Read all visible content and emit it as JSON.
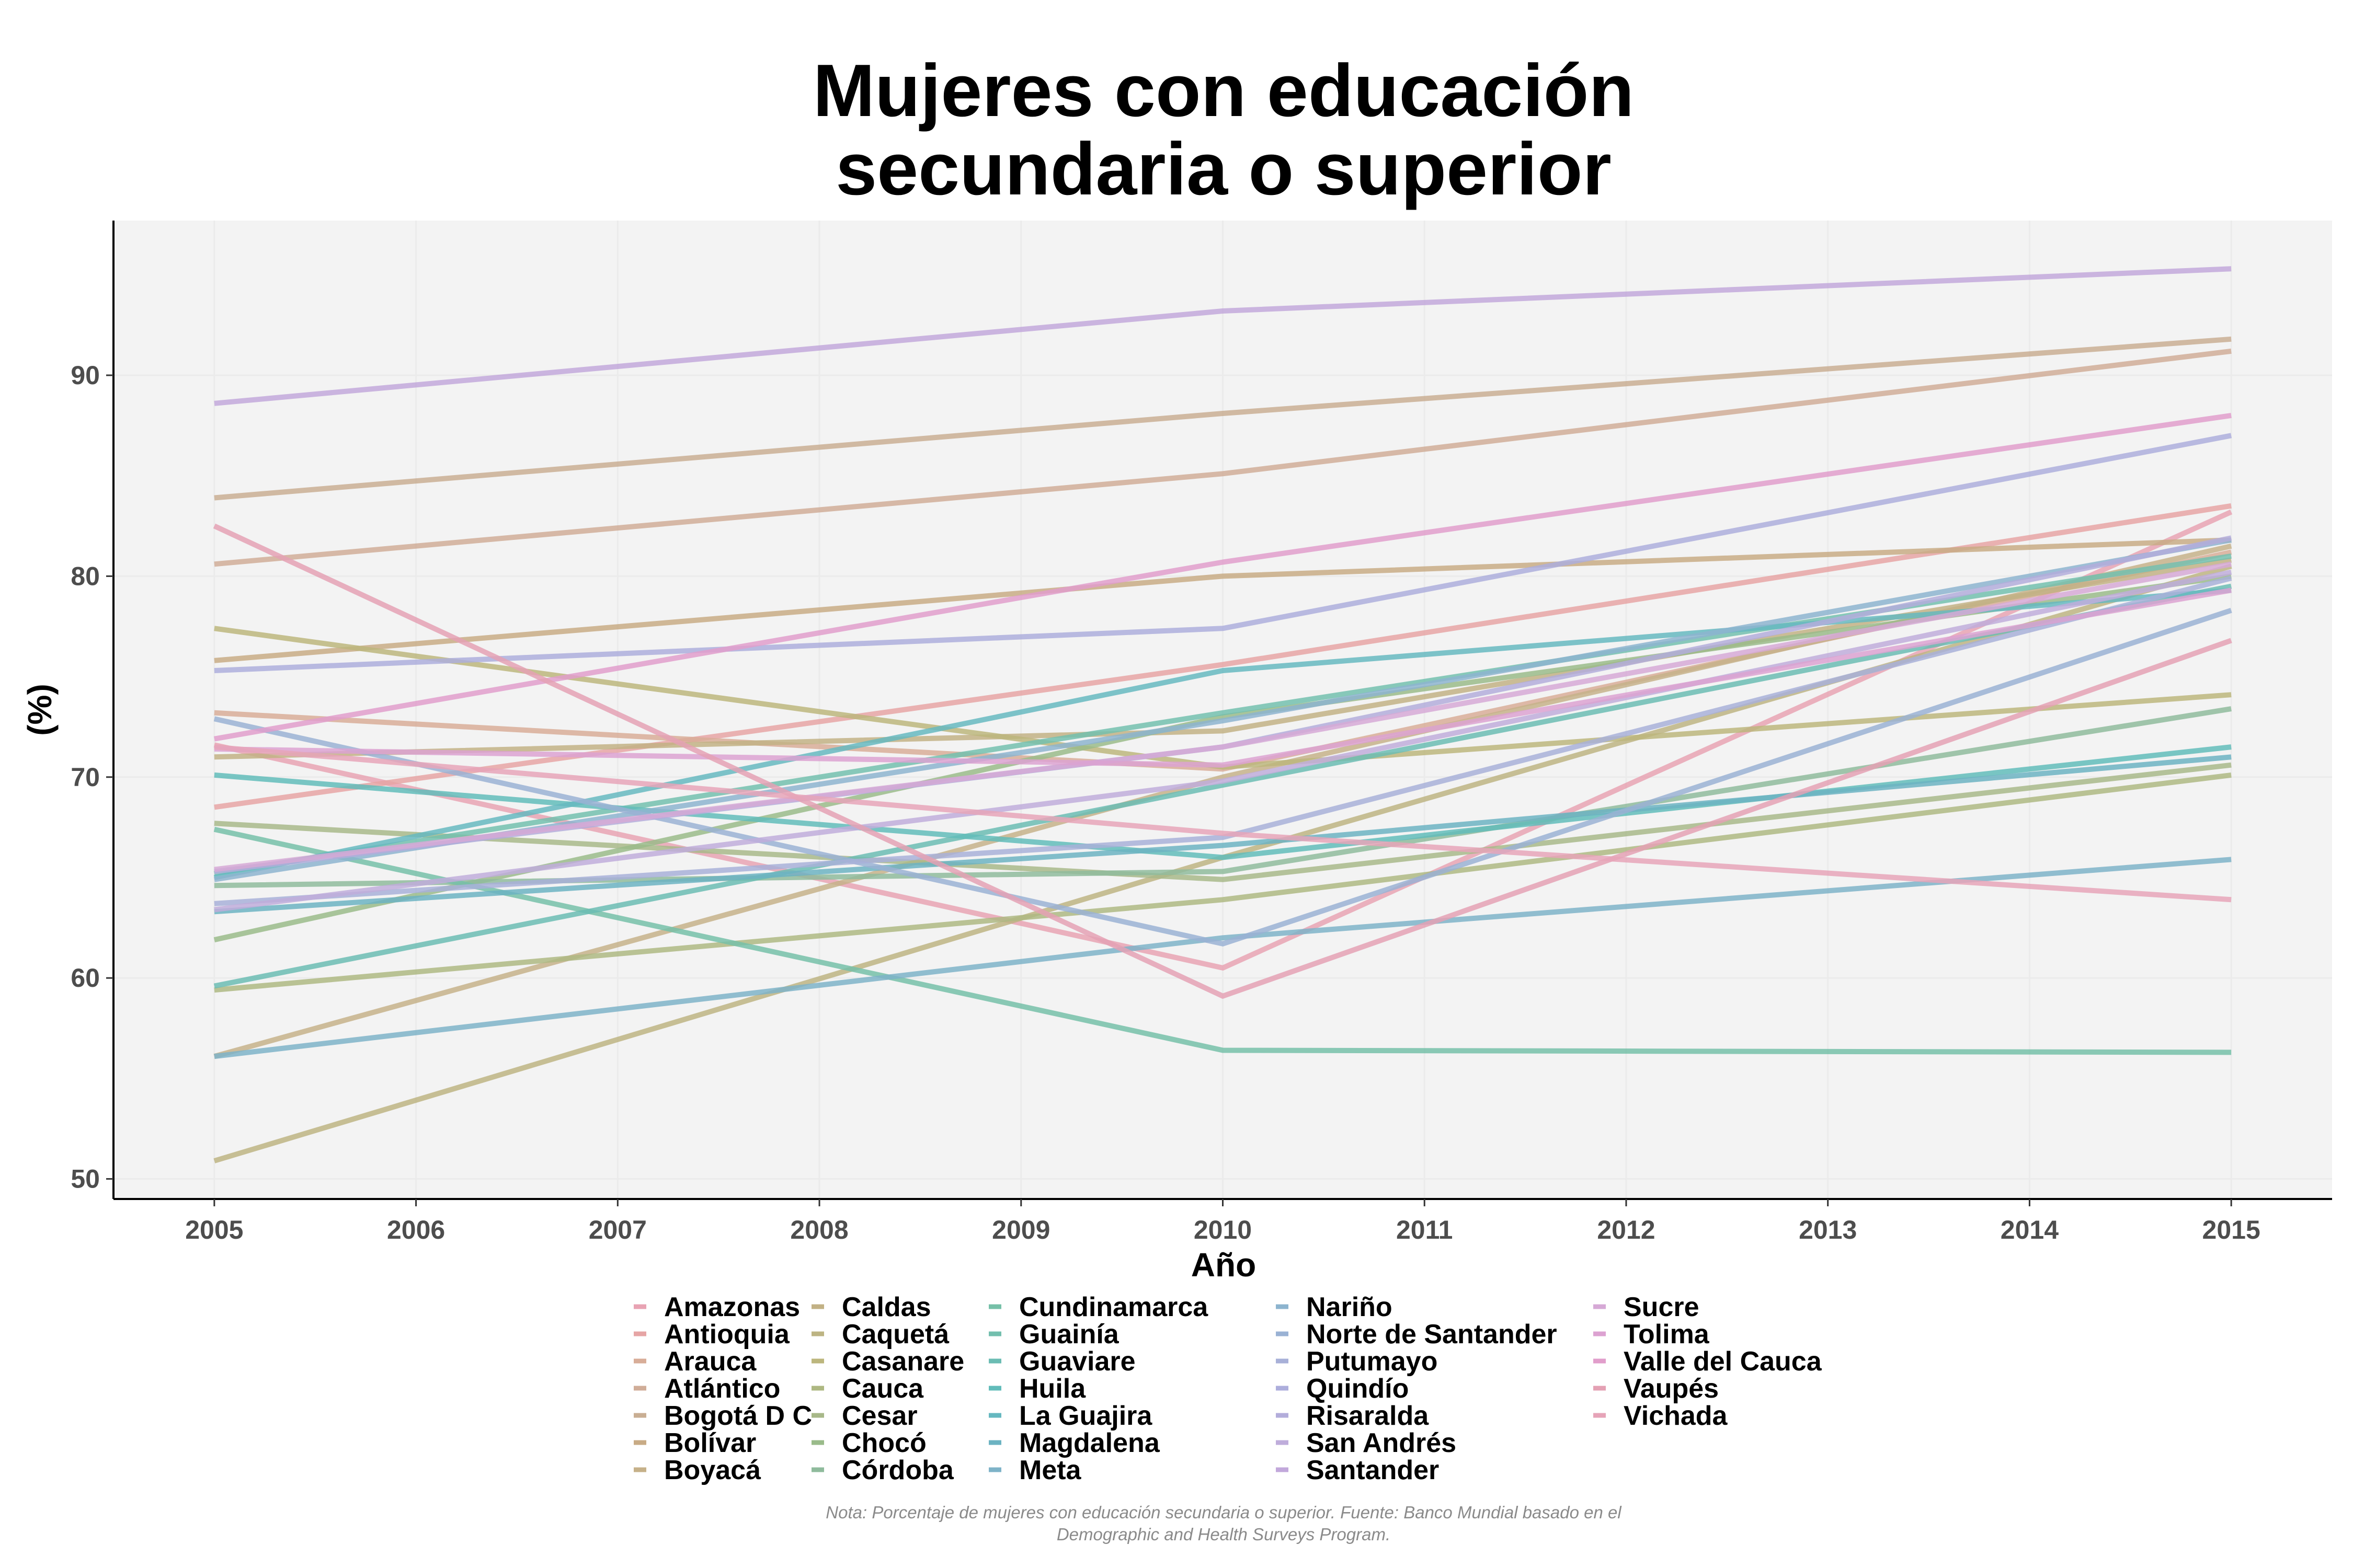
{
  "chart_data": {
    "type": "line",
    "title_lines": [
      "Mujeres con educación",
      "secundaria o superior"
    ],
    "xlabel": "Año",
    "ylabel": "(%)",
    "x": [
      2005,
      2010,
      2015
    ],
    "xticks": [
      "2005",
      "2006",
      "2007",
      "2008",
      "2009",
      "2010",
      "2011",
      "2012",
      "2013",
      "2014",
      "2015"
    ],
    "yticks": [
      50,
      60,
      70,
      80,
      90
    ],
    "xlim": [
      2004.5,
      2015.5
    ],
    "ylim": [
      49,
      97.7
    ],
    "note_lines": [
      "Nota: Porcentaje de mujeres con educación secundaria o superior. Fuente: Banco Mundial basado en el",
      "Demographic and Health Surveys Program."
    ],
    "series": [
      {
        "name": "Amazonas",
        "color": "#e8a3b3",
        "values": [
          71.6,
          60.5,
          83.2
        ]
      },
      {
        "name": "Antioquia",
        "color": "#e6a5a5",
        "values": [
          68.5,
          75.6,
          83.5
        ]
      },
      {
        "name": "Arauca",
        "color": "#d8ad98",
        "values": [
          73.2,
          70.4,
          81.2
        ]
      },
      {
        "name": "Atlántico",
        "color": "#d0ad98",
        "values": [
          80.6,
          85.1,
          91.2
        ]
      },
      {
        "name": "Bogotá D C",
        "color": "#c9ae93",
        "values": [
          83.9,
          88.1,
          91.8
        ]
      },
      {
        "name": "Bolívar",
        "color": "#c8ab85",
        "values": [
          75.8,
          80.0,
          81.8
        ]
      },
      {
        "name": "Boyacá",
        "color": "#c6b189",
        "values": [
          56.1,
          70.0,
          81.5
        ]
      },
      {
        "name": "Caldas",
        "color": "#c2b185",
        "values": [
          71.0,
          72.3,
          80.8
        ]
      },
      {
        "name": "Caquetá",
        "color": "#bdb483",
        "values": [
          50.9,
          66.0,
          80.5
        ]
      },
      {
        "name": "Casanare",
        "color": "#bcb67d",
        "values": [
          77.4,
          70.5,
          74.1
        ]
      },
      {
        "name": "Cauca",
        "color": "#aeb882",
        "values": [
          59.4,
          63.9,
          70.1
        ]
      },
      {
        "name": "Cesar",
        "color": "#a8b889",
        "values": [
          67.7,
          64.9,
          70.6
        ]
      },
      {
        "name": "Chocó",
        "color": "#9abb8a",
        "values": [
          61.9,
          73.0,
          80.0
        ]
      },
      {
        "name": "Córdoba",
        "color": "#8fbb9c",
        "values": [
          64.6,
          65.3,
          73.4
        ]
      },
      {
        "name": "Cundinamarca",
        "color": "#76c0a8",
        "values": [
          67.4,
          56.4,
          56.3
        ]
      },
      {
        "name": "Guainía",
        "color": "#73bfae",
        "values": [
          65.2,
          73.2,
          81.0
        ]
      },
      {
        "name": "Guaviare",
        "color": "#6bbcb3",
        "values": [
          59.6,
          69.6,
          79.5
        ]
      },
      {
        "name": "Huila",
        "color": "#62bcba",
        "values": [
          70.1,
          66.0,
          71.5
        ]
      },
      {
        "name": "La Guajira",
        "color": "#66b8c0",
        "values": [
          65.0,
          75.3,
          79.3
        ]
      },
      {
        "name": "Magdalena",
        "color": "#6cb3c2",
        "values": [
          63.3,
          66.6,
          71.0
        ]
      },
      {
        "name": "Meta",
        "color": "#7eb3c8",
        "values": [
          56.1,
          62.0,
          65.9
        ]
      },
      {
        "name": "Nariño",
        "color": "#8db4cf",
        "values": [
          64.9,
          72.8,
          81.8
        ]
      },
      {
        "name": "Norte de Santander",
        "color": "#9ab2d4",
        "values": [
          72.9,
          61.7,
          78.3
        ]
      },
      {
        "name": "Putumayo",
        "color": "#a8b0d8",
        "values": [
          63.7,
          67.0,
          79.9
        ]
      },
      {
        "name": "Quindío",
        "color": "#adaedc",
        "values": [
          75.3,
          77.4,
          87.0
        ]
      },
      {
        "name": "Risaralda",
        "color": "#b3addb",
        "values": [
          65.3,
          71.5,
          81.9
        ]
      },
      {
        "name": "San Andrés",
        "color": "#bfaddb",
        "values": [
          63.4,
          69.8,
          80.2
        ]
      },
      {
        "name": "Santander",
        "color": "#c2a8db",
        "values": [
          88.6,
          93.2,
          95.3
        ]
      },
      {
        "name": "Sucre",
        "color": "#d6a9d6",
        "values": [
          65.4,
          71.5,
          80.6
        ]
      },
      {
        "name": "Tolima",
        "color": "#dca2d1",
        "values": [
          71.4,
          70.6,
          79.3
        ]
      },
      {
        "name": "Valle del Cauca",
        "color": "#e19ecb",
        "values": [
          71.9,
          80.7,
          88.0
        ]
      },
      {
        "name": "Vaupés",
        "color": "#e4a1b4",
        "values": [
          82.5,
          59.1,
          76.8
        ]
      },
      {
        "name": "Vichada",
        "color": "#e6a4b8",
        "values": [
          71.5,
          67.2,
          63.9
        ]
      }
    ]
  }
}
